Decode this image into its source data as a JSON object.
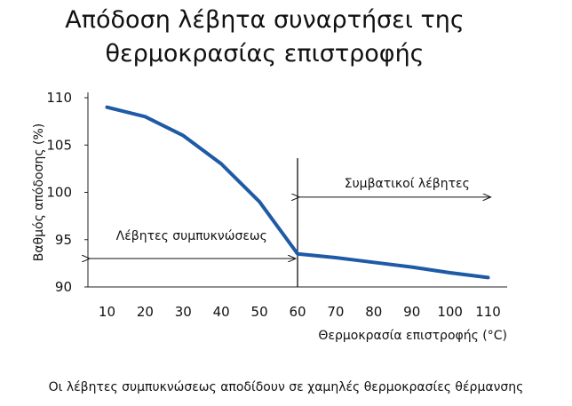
{
  "title_line1": "Απόδοση λέβητα συναρτήσει της",
  "title_line2": "θερμοκρασίας επιστροφής",
  "caption": "Οι λέβητες συμπυκνώσεως αποδίδουν σε χαμηλές θερμοκρασίες θέρμανσης",
  "chart_data": {
    "type": "line",
    "title": "Απόδοση λέβητα συναρτήσει της θερμοκρασίας επιστροφής",
    "xlabel": "Θερμοκρασία επιστροφής (°C)",
    "ylabel": "Βαθμός απόδοσης (%)",
    "categories": [
      "10",
      "20",
      "30",
      "40",
      "50",
      "60",
      "70",
      "80",
      "90",
      "100",
      "110"
    ],
    "x": [
      10,
      20,
      30,
      40,
      50,
      60,
      70,
      80,
      90,
      100,
      110
    ],
    "y_ticks": [
      90,
      95,
      100,
      105,
      110
    ],
    "ylim": [
      90,
      110
    ],
    "grid": false,
    "series": [
      {
        "x": [
          10,
          20,
          30,
          40,
          50,
          60,
          70,
          80,
          90,
          100,
          110
        ],
        "values": [
          109,
          108,
          106,
          103,
          99,
          93.5,
          93.1,
          92.6,
          92.1,
          91.5,
          91
        ],
        "color": "#1f5aa6"
      }
    ],
    "divider_x": 60,
    "annotations": [
      {
        "text": "Λέβητες συμπυκνώσεως",
        "from_x": 10,
        "to_x": 60,
        "arrow_y": 93,
        "text_y": 95
      },
      {
        "text": "Συμβατικοί λέβητες",
        "from_x": 60,
        "to_x": 110,
        "arrow_y": 99.5,
        "text_y": 100.5
      }
    ]
  }
}
